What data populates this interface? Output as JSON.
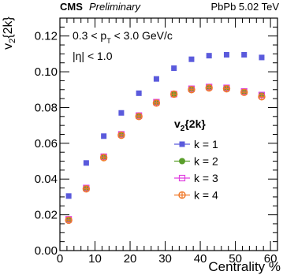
{
  "header": {
    "experiment": "CMS",
    "status": "Preliminary",
    "system": "PbPb 5.02 TeV"
  },
  "annotations": {
    "pt_prefix": "0.3 < p",
    "pt_sub": "T",
    "pt_suffix": " < 3.0 GeV/c",
    "eta": "|η| < 1.0"
  },
  "chart_data": {
    "type": "scatter",
    "title": "",
    "xlabel": "Centrality %",
    "ylabel_main": "v",
    "ylabel_sub": "2",
    "ylabel_suffix": "{2k}",
    "xlim": [
      0,
      62
    ],
    "ylim": [
      0.0,
      0.13
    ],
    "x_ticks": [
      0,
      10,
      20,
      30,
      40,
      50,
      60
    ],
    "y_ticks": [
      0.0,
      0.02,
      0.04,
      0.06,
      0.08,
      0.1,
      0.12
    ],
    "y_tick_labels": [
      "0.00",
      "0.02",
      "0.04",
      "0.06",
      "0.08",
      "0.10",
      "0.12"
    ],
    "grid": false,
    "legend": {
      "position": "center-right",
      "title_main": "v",
      "title_sub": "2",
      "title_suffix": "{2k}"
    },
    "x": [
      2.5,
      7.5,
      12.5,
      17.5,
      22.5,
      27.5,
      32.5,
      37.5,
      42.5,
      47.5,
      52.5,
      57.5
    ],
    "series": [
      {
        "name": "k = 1",
        "marker": "filled-square",
        "color": "#5a5adc",
        "values": [
          0.0305,
          0.049,
          0.064,
          0.077,
          0.088,
          0.096,
          0.102,
          0.107,
          0.109,
          0.1095,
          0.1095,
          0.108
        ]
      },
      {
        "name": "k = 2",
        "marker": "filled-circle",
        "color": "#5a9e2b",
        "values": [
          0.0175,
          0.035,
          0.0525,
          0.065,
          0.0755,
          0.083,
          0.0875,
          0.0905,
          0.0915,
          0.091,
          0.089,
          0.087
        ]
      },
      {
        "name": "k = 3",
        "marker": "open-square",
        "color": "#e040e0",
        "values": [
          0.0175,
          0.035,
          0.0525,
          0.065,
          0.0755,
          0.083,
          0.0875,
          0.0905,
          0.0915,
          0.091,
          0.089,
          0.087
        ]
      },
      {
        "name": "k = 4",
        "marker": "open-circle-cross",
        "color": "#f07828",
        "values": [
          0.017,
          0.0345,
          0.052,
          0.0645,
          0.075,
          0.0825,
          0.0875,
          0.09,
          0.091,
          0.0905,
          0.0885,
          0.086
        ]
      }
    ]
  }
}
